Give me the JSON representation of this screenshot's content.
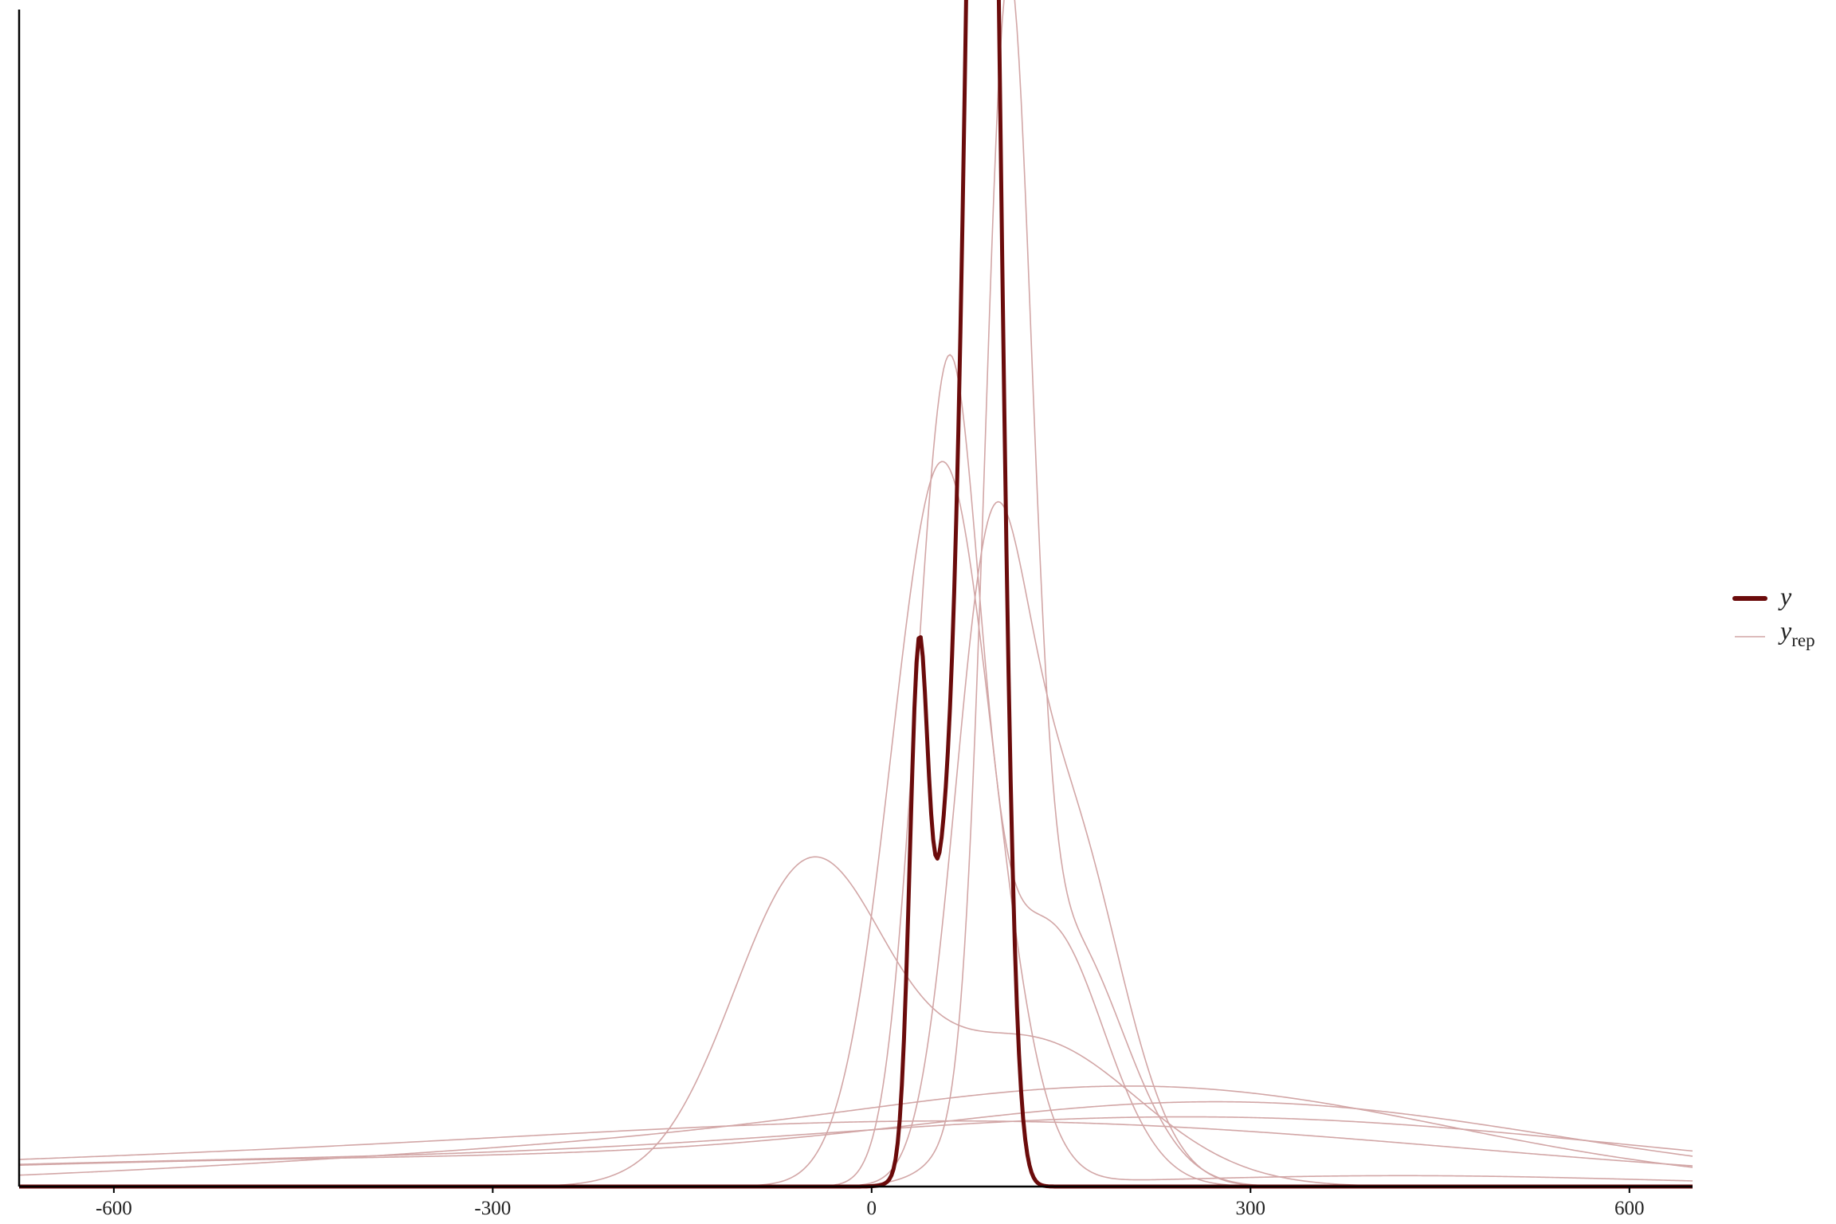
{
  "chart_data": {
    "type": "line",
    "title": "",
    "xlabel": "",
    "ylabel": "",
    "xlim": [
      -675,
      650
    ],
    "ylim": [
      0,
      0.0151
    ],
    "xticks": [
      -600,
      -300,
      0,
      300,
      600
    ],
    "xtick_labels": [
      "-600",
      "-300",
      "0",
      "300",
      "600"
    ],
    "yaxis_ticks": false,
    "grid": false,
    "legend": {
      "placement": "right",
      "entries": [
        {
          "key": "y",
          "label": "y",
          "subscript": "",
          "color": "#6b0b0b",
          "style": "thick"
        },
        {
          "key": "yrep",
          "label": "y",
          "subscript": "rep",
          "color": "#d2a6a6",
          "style": "thin"
        }
      ]
    },
    "y_density": {
      "name": "y",
      "color": "#6b0b0b",
      "components": [
        {
          "weight": 0.72,
          "mean": 89,
          "sd": 12
        },
        {
          "weight": 0.18,
          "mean": 63,
          "sd": 17
        },
        {
          "weight": 0.1,
          "mean": 37,
          "sd": 7
        }
      ]
    },
    "yrep_densities": {
      "name": "yrep",
      "color": "#d2a6a6",
      "draws": [
        {
          "components": [
            {
              "weight": 0.93,
              "mean": 56,
              "sd": 40
            },
            {
              "weight": 0.07,
              "mean": 420,
              "sd": 200
            }
          ]
        },
        {
          "components": [
            {
              "weight": 0.62,
              "mean": 60,
              "sd": 25
            },
            {
              "weight": 0.38,
              "mean": 138,
              "sd": 45
            }
          ]
        },
        {
          "components": [
            {
              "weight": 0.6,
              "mean": 108,
              "sd": 18
            },
            {
              "weight": 0.4,
              "mean": 150,
              "sd": 48
            }
          ]
        },
        {
          "components": [
            {
              "weight": 0.45,
              "mean": 92,
              "sd": 28
            },
            {
              "weight": 0.55,
              "mean": 150,
              "sd": 45
            }
          ]
        },
        {
          "components": [
            {
              "weight": 0.6,
              "mean": -50,
              "sd": 60
            },
            {
              "weight": 0.4,
              "mean": 125,
              "sd": 85
            }
          ]
        },
        {
          "components": [
            {
              "weight": 0.55,
              "mean": 250,
              "sd": 225
            },
            {
              "weight": 0.45,
              "mean": -120,
              "sd": 350
            }
          ]
        },
        {
          "components": [
            {
              "weight": 0.6,
              "mean": 300,
              "sd": 250
            },
            {
              "weight": 0.4,
              "mean": -350,
              "sd": 450
            }
          ]
        },
        {
          "components": [
            {
              "weight": 0.7,
              "mean": 280,
              "sd": 330
            },
            {
              "weight": 0.3,
              "mean": -500,
              "sd": 400
            }
          ]
        },
        {
          "components": [
            {
              "weight": 0.55,
              "mean": 150,
              "sd": 350
            },
            {
              "weight": 0.45,
              "mean": -400,
              "sd": 500
            }
          ]
        }
      ]
    }
  }
}
